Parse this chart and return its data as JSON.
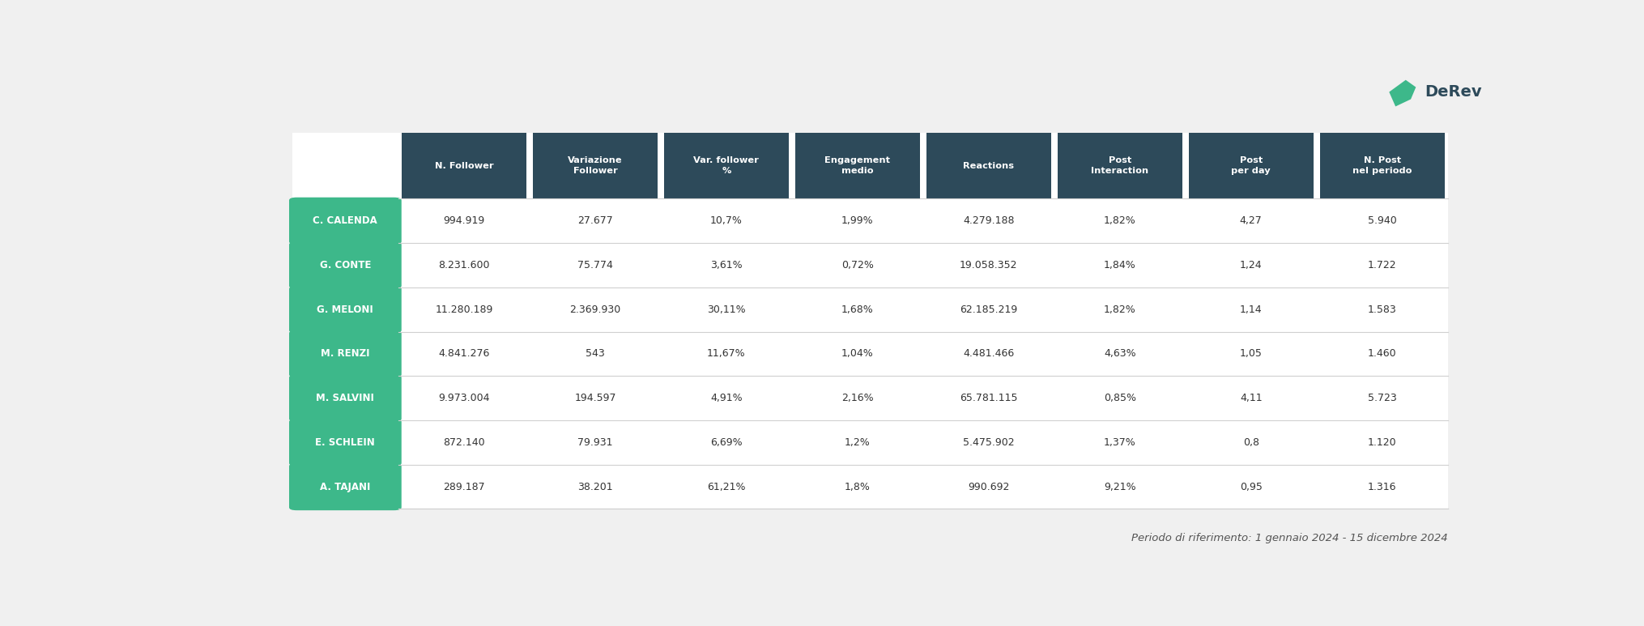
{
  "headers": [
    "N. Follower",
    "Variazione\nFollower",
    "Var. follower\n%",
    "Engagement\nmedio",
    "Reactions",
    "Post\nInteraction",
    "Post\nper day",
    "N. Post\nnel periodo"
  ],
  "row_labels": [
    "C. CALENDA",
    "G. CONTE",
    "G. MELONI",
    "M. RENZI",
    "M. SALVINI",
    "E. SCHLEIN",
    "A. TAJANI"
  ],
  "rows": [
    [
      "994.919",
      "27.677",
      "10,7%",
      "1,99%",
      "4.279.188",
      "1,82%",
      "4,27",
      "5.940"
    ],
    [
      "8.231.600",
      "75.774",
      "3,61%",
      "0,72%",
      "19.058.352",
      "1,84%",
      "1,24",
      "1.722"
    ],
    [
      "11.280.189",
      "2.369.930",
      "30,11%",
      "1,68%",
      "62.185.219",
      "1,82%",
      "1,14",
      "1.583"
    ],
    [
      "4.841.276",
      "543",
      "11,67%",
      "1,04%",
      "4.481.466",
      "4,63%",
      "1,05",
      "1.460"
    ],
    [
      "9.973.004",
      "194.597",
      "4,91%",
      "2,16%",
      "65.781.115",
      "0,85%",
      "4,11",
      "5.723"
    ],
    [
      "872.140",
      "79.931",
      "6,69%",
      "1,2%",
      "5.475.902",
      "1,37%",
      "0,8",
      "1.120"
    ],
    [
      "289.187",
      "38.201",
      "61,21%",
      "1,8%",
      "990.692",
      "9,21%",
      "0,95",
      "1.316"
    ]
  ],
  "header_bg": "#2d4a5a",
  "header_fg": "#ffffff",
  "label_bg": "#3db88a",
  "label_fg": "#ffffff",
  "cell_fg": "#333333",
  "bg_color": "#f0f0f0",
  "table_bg": "#ffffff",
  "separator_color": "#d0d0d0",
  "footer_text": "Periodo di riferimento: 1 gennaio 2024 - 15 dicembre 2024",
  "footer_color": "#555555",
  "derev_color": "#2d4a5a",
  "fig_width": 20.3,
  "fig_height": 7.73
}
